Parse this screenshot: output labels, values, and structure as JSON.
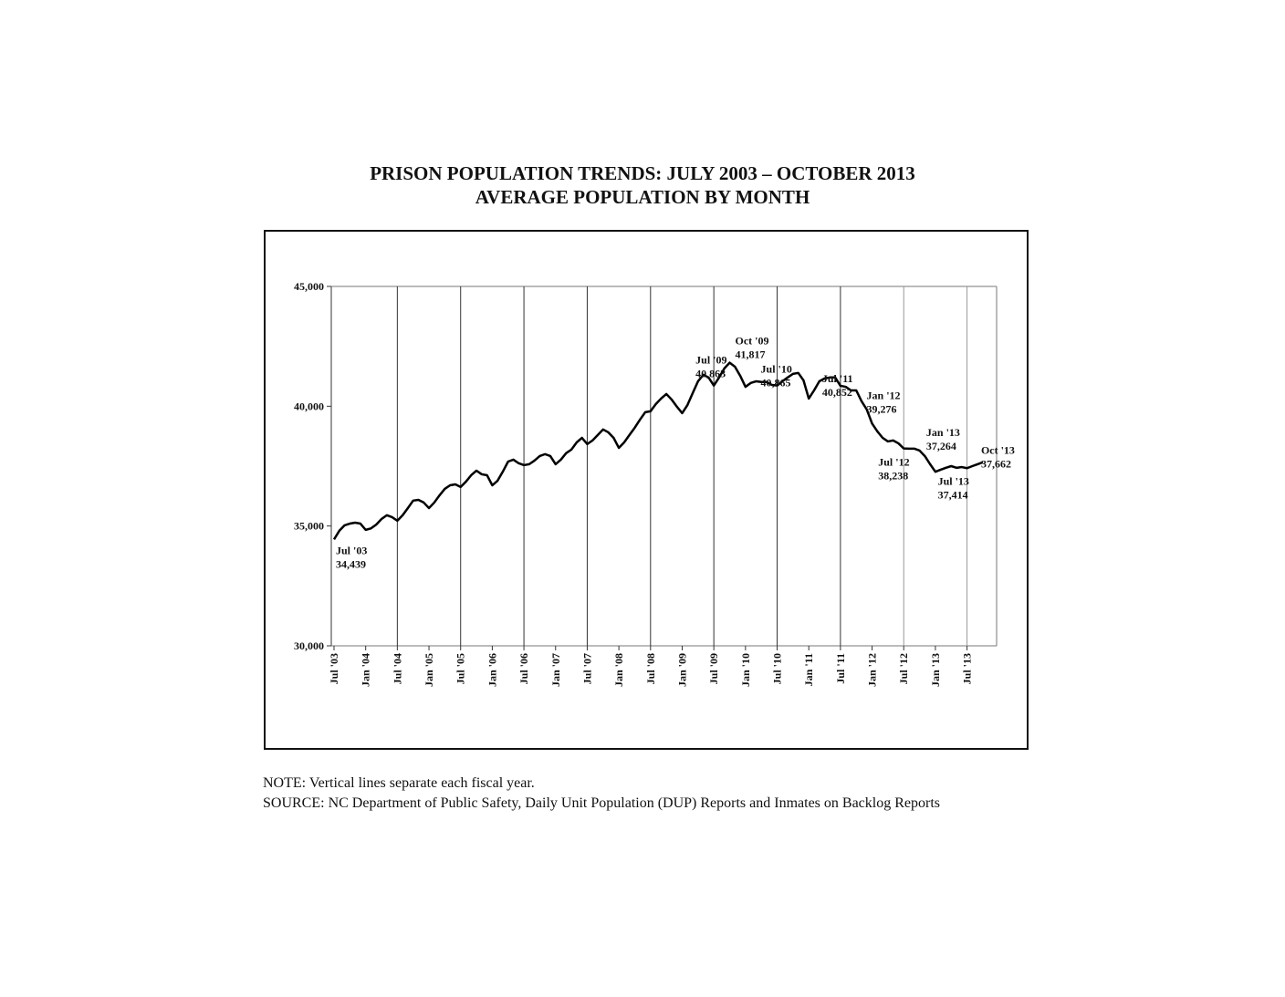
{
  "chart_data": {
    "type": "line",
    "title": "PRISON POPULATION TRENDS: JULY 2003 – OCTOBER 2013",
    "subtitle": "AVERAGE POPULATION BY MONTH",
    "notes": [
      "NOTE: Vertical lines separate each fiscal year.",
      "SOURCE: NC Department of Public Safety, Daily Unit Population (DUP) Reports and Inmates on Backlog Reports"
    ],
    "categories": [
      "Jul '03",
      null,
      null,
      null,
      null,
      null,
      "Jan '04",
      null,
      null,
      null,
      null,
      null,
      "Jul '04",
      null,
      null,
      null,
      null,
      null,
      "Jan '05",
      null,
      null,
      null,
      null,
      null,
      "Jul '05",
      null,
      null,
      null,
      null,
      null,
      "Jan '06",
      null,
      null,
      null,
      null,
      null,
      "Jul '06",
      null,
      null,
      null,
      null,
      null,
      "Jan '07",
      null,
      null,
      null,
      null,
      null,
      "Jul '07",
      null,
      null,
      null,
      null,
      null,
      "Jan '08",
      null,
      null,
      null,
      null,
      null,
      "Jul '08",
      null,
      null,
      null,
      null,
      null,
      "Jan '09",
      null,
      null,
      null,
      null,
      null,
      "Jul '09",
      null,
      null,
      null,
      null,
      null,
      "Jan '10",
      null,
      null,
      null,
      null,
      null,
      "Jul '10",
      null,
      null,
      null,
      null,
      null,
      "Jan '11",
      null,
      null,
      null,
      null,
      null,
      "Jul '11",
      null,
      null,
      null,
      null,
      null,
      "Jan '12",
      null,
      null,
      null,
      null,
      null,
      "Jul '12",
      null,
      null,
      null,
      null,
      null,
      "Jan '13",
      null,
      null,
      null,
      null,
      null,
      "Jul '13",
      null,
      null,
      null
    ],
    "values": [
      34439,
      34800,
      35030,
      35100,
      35140,
      35100,
      34840,
      34900,
      35060,
      35290,
      35450,
      35370,
      35220,
      35450,
      35750,
      36060,
      36090,
      35980,
      35750,
      35980,
      36280,
      36550,
      36700,
      36740,
      36630,
      36850,
      37120,
      37310,
      37160,
      37120,
      36700,
      36890,
      37270,
      37690,
      37770,
      37620,
      37540,
      37580,
      37730,
      37920,
      38000,
      37920,
      37580,
      37770,
      38040,
      38190,
      38490,
      38680,
      38420,
      38570,
      38800,
      39030,
      38910,
      38680,
      38260,
      38490,
      38800,
      39100,
      39440,
      39750,
      39790,
      40090,
      40320,
      40510,
      40280,
      39980,
      39710,
      40050,
      40550,
      41040,
      41310,
      41200,
      40863,
      41200,
      41580,
      41817,
      41650,
      41270,
      40810,
      40970,
      41040,
      41010,
      41010,
      40890,
      40865,
      41040,
      41200,
      41350,
      41390,
      41080,
      40320,
      40660,
      41040,
      41160,
      41200,
      41200,
      40852,
      40810,
      40660,
      40660,
      40210,
      39860,
      39276,
      38950,
      38680,
      38530,
      38570,
      38450,
      38238,
      38230,
      38230,
      38150,
      37920,
      37580,
      37264,
      37350,
      37430,
      37500,
      37430,
      37460,
      37414,
      37500,
      37580,
      37662
    ],
    "point_labels": [
      "Jul '03",
      null,
      null,
      null,
      null,
      null,
      null,
      null,
      null,
      null,
      null,
      null,
      null,
      null,
      null,
      null,
      null,
      null,
      null,
      null,
      null,
      null,
      null,
      null,
      null,
      null,
      null,
      null,
      null,
      null,
      null,
      null,
      null,
      null,
      null,
      null,
      null,
      null,
      null,
      null,
      null,
      null,
      null,
      null,
      null,
      null,
      null,
      null,
      null,
      null,
      null,
      null,
      null,
      null,
      null,
      null,
      null,
      null,
      null,
      null,
      null,
      null,
      null,
      null,
      null,
      null,
      null,
      null,
      null,
      null,
      null,
      null,
      "Jul '09",
      null,
      null,
      "Oct '09",
      null,
      null,
      null,
      null,
      null,
      null,
      null,
      null,
      "Jul '10",
      null,
      null,
      null,
      null,
      null,
      null,
      null,
      null,
      null,
      null,
      null,
      "Jul '11",
      null,
      null,
      null,
      null,
      null,
      "Jan '12",
      null,
      null,
      null,
      null,
      null,
      "Jul '12",
      null,
      null,
      null,
      null,
      null,
      "Jan '13",
      null,
      null,
      null,
      null,
      null,
      "Jul '13",
      null,
      null,
      "Oct '13"
    ],
    "value_labels": [
      "34,439",
      null,
      null,
      null,
      null,
      null,
      null,
      null,
      null,
      null,
      null,
      null,
      null,
      null,
      null,
      null,
      null,
      null,
      null,
      null,
      null,
      null,
      null,
      null,
      null,
      null,
      null,
      null,
      null,
      null,
      null,
      null,
      null,
      null,
      null,
      null,
      null,
      null,
      null,
      null,
      null,
      null,
      null,
      null,
      null,
      null,
      null,
      null,
      null,
      null,
      null,
      null,
      null,
      null,
      null,
      null,
      null,
      null,
      null,
      null,
      null,
      null,
      null,
      null,
      null,
      null,
      null,
      null,
      null,
      null,
      null,
      null,
      "40,863",
      null,
      null,
      "41,817",
      null,
      null,
      null,
      null,
      null,
      null,
      null,
      null,
      "40,865",
      null,
      null,
      null,
      null,
      null,
      null,
      null,
      null,
      null,
      null,
      null,
      "40,852",
      null,
      null,
      null,
      null,
      null,
      "39,276",
      null,
      null,
      null,
      null,
      null,
      "38,238",
      null,
      null,
      null,
      null,
      null,
      "37,264",
      null,
      null,
      null,
      null,
      null,
      "37,414",
      null,
      null,
      "37,662"
    ],
    "color": "#000000",
    "ylim": [
      30000,
      45000
    ],
    "yticks": [
      {
        "value": 30000,
        "label": "30,000"
      },
      {
        "value": 35000,
        "label": "35,000"
      },
      {
        "value": 40000,
        "label": "40,000"
      },
      {
        "value": 45000,
        "label": "45,000"
      }
    ]
  }
}
